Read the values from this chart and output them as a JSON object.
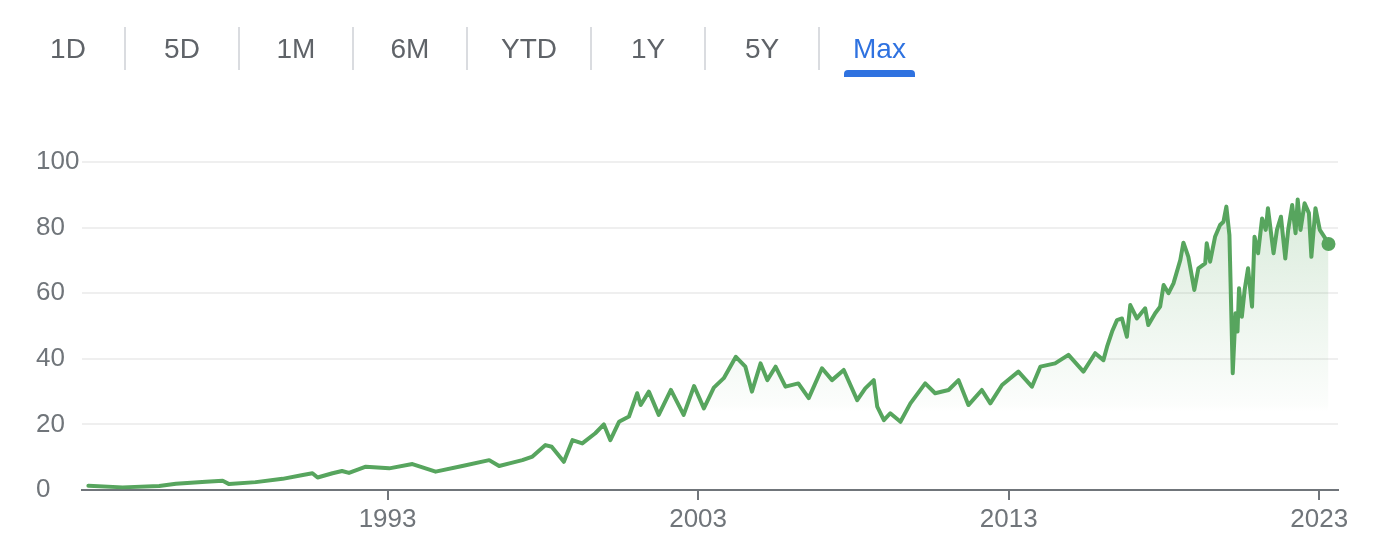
{
  "chart_data": {
    "type": "area",
    "annotations": [
      "1D",
      "5D",
      "1M",
      "6M",
      "YTD",
      "1Y",
      "5Y",
      "Max"
    ],
    "x": [
      "1983-05-15",
      "1984-06-20",
      "1985-08-25",
      "1986-03-10",
      "1987-02-25",
      "1987-09-10",
      "1987-11-25",
      "1988-10-05",
      "1989-08-15",
      "1990-04-10",
      "1990-08-01",
      "1990-10-01",
      "1991-03-25",
      "1991-07-15",
      "1991-10-05",
      "1992-04-20",
      "1993-01-20",
      "1993-10-20",
      "1994-07-20",
      "1995-05-30",
      "1996-04-10",
      "1996-08-05",
      "1997-05-05",
      "1997-09-01",
      "1998-02-01",
      "1998-04-15",
      "1998-09-05",
      "1998-12-15",
      "1999-04-10",
      "1999-09-10",
      "1999-12-20",
      "2000-03-05",
      "2000-06-15",
      "2000-10-10",
      "2001-01-15",
      "2001-02-25",
      "2001-06-01",
      "2001-09-25",
      "2002-02-15",
      "2002-07-15",
      "2002-11-15",
      "2003-03-10",
      "2003-07-05",
      "2003-10-30",
      "2004-03-20",
      "2004-07-10",
      "2004-09-25",
      "2005-01-05",
      "2005-03-25",
      "2005-06-30",
      "2005-10-25",
      "2006-03-25",
      "2006-07-25",
      "2006-12-28",
      "2007-04-25",
      "2007-09-10",
      "2008-02-15",
      "2008-05-20",
      "2008-08-28",
      "2008-10-08",
      "2008-12-25",
      "2009-03-10",
      "2009-07-08",
      "2009-11-02",
      "2010-04-25",
      "2010-08-20",
      "2011-01-25",
      "2011-05-22",
      "2011-09-15",
      "2012-02-20",
      "2012-05-30",
      "2012-10-15",
      "2013-04-25",
      "2013-10-01",
      "2014-01-08",
      "2014-07-01",
      "2014-12-05",
      "2015-05-30",
      "2015-10-15",
      "2016-01-20",
      "2016-03-03",
      "2016-05-01",
      "2016-06-28",
      "2016-08-25",
      "2016-10-22",
      "2016-12-01",
      "2017-02-16",
      "2017-05-25",
      "2017-07-01",
      "2017-09-20",
      "2017-11-17",
      "2017-12-28",
      "2018-02-24",
      "2018-04-23",
      "2018-07-12",
      "2018-08-18",
      "2018-10-15",
      "2018-12-24",
      "2019-02-10",
      "2019-05-01",
      "2019-05-19",
      "2019-06-28",
      "2019-08-25",
      "2019-10-23",
      "2019-12-02",
      "2020-01-05",
      "2020-02-10",
      "2020-03-20",
      "2020-04-22",
      "2020-05-15",
      "2020-06-02",
      "2020-07-05",
      "2020-08-07",
      "2020-09-16",
      "2020-11-02",
      "2020-12-01",
      "2021-01-12",
      "2021-02-28",
      "2021-04-12",
      "2021-05-08",
      "2021-07-13",
      "2021-08-22",
      "2021-10-08",
      "2021-11-28",
      "2022-01-01",
      "2022-02-17",
      "2022-03-29",
      "2022-04-23",
      "2022-05-26",
      "2022-07-13",
      "2022-09-02",
      "2022-10-01",
      "2022-11-18",
      "2023-01-08",
      "2023-03-14",
      "2023-04-20"
    ],
    "series": [
      {
        "color": "#57a55e",
        "values": [
          1.3,
          0.8,
          1.2,
          1.9,
          2.5,
          2.8,
          1.8,
          2.4,
          3.4,
          4.6,
          5.1,
          3.8,
          5.1,
          5.8,
          5.2,
          7.1,
          6.6,
          7.9,
          5.6,
          7.3,
          9.1,
          7.3,
          9.1,
          10.2,
          13.7,
          13.2,
          8.6,
          15.2,
          14.2,
          17.3,
          20.0,
          15.2,
          20.8,
          22.4,
          29.5,
          25.9,
          30.0,
          22.9,
          30.5,
          22.9,
          31.7,
          24.9,
          31.2,
          34.1,
          40.6,
          37.6,
          30.0,
          38.6,
          33.5,
          37.6,
          31.5,
          32.5,
          28.0,
          37.1,
          33.5,
          36.6,
          27.4,
          31.0,
          33.5,
          25.4,
          21.3,
          23.4,
          20.8,
          26.4,
          32.5,
          29.5,
          30.5,
          33.5,
          25.9,
          30.5,
          26.4,
          32.0,
          36.1,
          31.5,
          37.6,
          38.6,
          41.2,
          36.1,
          41.7,
          39.6,
          43.7,
          48.3,
          51.8,
          52.3,
          46.7,
          56.4,
          52.3,
          55.4,
          50.3,
          53.9,
          55.9,
          62.5,
          60.0,
          63.0,
          70.1,
          75.4,
          71.1,
          61.0,
          67.6,
          69.1,
          75.2,
          69.6,
          77.2,
          80.8,
          81.8,
          86.4,
          77.7,
          35.6,
          53.9,
          48.3,
          61.5,
          52.8,
          61.0,
          67.6,
          55.9,
          77.2,
          72.2,
          82.8,
          79.3,
          85.9,
          72.2,
          79.3,
          83.3,
          70.6,
          79.3,
          86.9,
          78.3,
          88.6,
          79.3,
          87.4,
          84.4,
          71.1,
          85.9,
          79.3,
          76.7,
          75
        ]
      },
      {
        "type": "scatter",
        "x": [
          "2023-04-20"
        ],
        "values": [
          75
        ],
        "color": "#57a55e",
        "marker": "circle"
      }
    ],
    "xlim": [
      "1983-03-01",
      "2023-08-10"
    ],
    "xticks": [
      "1993",
      "2003",
      "2013",
      "2023"
    ],
    "ylim": [
      0,
      100
    ],
    "yticks": [
      0,
      20,
      40,
      60,
      80,
      100
    ],
    "grid": "y",
    "marker": "none"
  }
}
